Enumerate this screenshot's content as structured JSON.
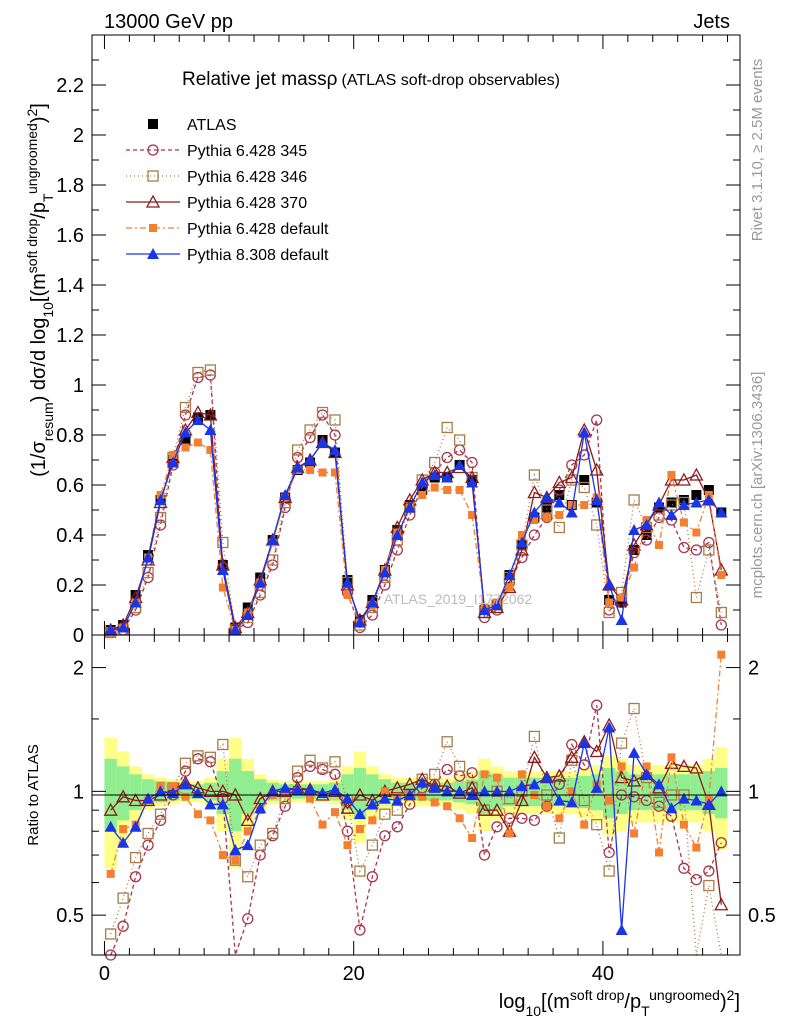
{
  "header": {
    "left": "13000 GeV pp",
    "right": "Jets"
  },
  "side_labels": {
    "rivet": "Rivet 3.1.10, ≥ 2.5M events",
    "mcplots": "mcplots.cern.ch [arXiv:1306.3436]"
  },
  "watermark": "ATLAS_2019_I1772062",
  "chart_data": [
    {
      "type": "line",
      "title": "Relative jet massρ",
      "subtitle": "(ATLAS soft-drop observables)",
      "ylabel": "(1/σresum) dσ/d log10[(m^soft drop/pT^ungroomed)²]",
      "xlim": [
        -1,
        51
      ],
      "ylim": [
        0,
        2.4
      ],
      "yticks": [
        0,
        0.2,
        0.4,
        0.6,
        0.8,
        1,
        1.2,
        1.4,
        1.6,
        1.8,
        2,
        2.2
      ],
      "x": [
        0.5,
        1.5,
        2.5,
        3.5,
        4.5,
        5.5,
        6.5,
        7.5,
        8.5,
        9.5,
        10.5,
        11.5,
        12.5,
        13.5,
        14.5,
        15.5,
        16.5,
        17.5,
        18.5,
        19.5,
        20.5,
        21.5,
        22.5,
        23.5,
        24.5,
        25.5,
        26.5,
        27.5,
        28.5,
        29.5,
        30.5,
        31.5,
        32.5,
        33.5,
        34.5,
        35.5,
        36.5,
        37.5,
        38.5,
        39.5,
        40.5,
        41.5,
        42.5,
        43.5,
        44.5,
        45.5,
        46.5,
        47.5,
        48.5,
        49.5
      ],
      "legend_position": "top-left",
      "series": [
        {
          "name": "ATLAS",
          "color": "#000000",
          "marker": "square-filled",
          "dash": "none",
          "values": [
            0.02,
            0.04,
            0.16,
            0.32,
            0.54,
            0.7,
            0.78,
            0.87,
            0.88,
            0.28,
            0.03,
            0.11,
            0.23,
            0.38,
            0.55,
            0.66,
            0.69,
            0.78,
            0.73,
            0.22,
            0.06,
            0.14,
            0.26,
            0.42,
            0.52,
            0.58,
            0.63,
            0.63,
            0.68,
            0.62,
            0.1,
            0.12,
            0.24,
            0.36,
            0.47,
            0.51,
            0.56,
            0.52,
            0.62,
            0.53,
            0.14,
            0.13,
            0.34,
            0.4,
            0.51,
            0.53,
            0.54,
            0.56,
            0.58,
            0.49
          ]
        },
        {
          "name": "Pythia 6.428 345",
          "color": "#a8344a",
          "marker": "circle-open",
          "dash": "4,3",
          "values": [
            0.01,
            0.02,
            0.1,
            0.23,
            0.44,
            0.68,
            0.88,
            1.03,
            1.04,
            0.27,
            0.02,
            0.05,
            0.16,
            0.28,
            0.51,
            0.71,
            0.79,
            0.88,
            0.8,
            0.17,
            0.03,
            0.08,
            0.2,
            0.34,
            0.48,
            0.59,
            0.65,
            0.71,
            0.74,
            0.69,
            0.07,
            0.1,
            0.21,
            0.31,
            0.4,
            0.47,
            0.58,
            0.68,
            0.72,
            0.86,
            0.1,
            0.13,
            0.33,
            0.38,
            0.47,
            0.46,
            0.35,
            0.34,
            0.37,
            0.04
          ]
        },
        {
          "name": "Pythia 6.428 346",
          "color": "#a67c48",
          "marker": "square-open",
          "dash": "1,3",
          "values": [
            0.01,
            0.02,
            0.11,
            0.25,
            0.47,
            0.71,
            0.91,
            1.05,
            1.06,
            0.37,
            0.02,
            0.07,
            0.17,
            0.3,
            0.53,
            0.74,
            0.82,
            0.89,
            0.86,
            0.21,
            0.04,
            0.11,
            0.23,
            0.38,
            0.51,
            0.62,
            0.69,
            0.83,
            0.78,
            0.63,
            0.09,
            0.12,
            0.23,
            0.36,
            0.64,
            0.5,
            0.43,
            0.62,
            0.59,
            0.44,
            0.09,
            0.17,
            0.54,
            0.43,
            0.48,
            0.52,
            0.53,
            0.15,
            0.34,
            0.09
          ]
        },
        {
          "name": "Pythia 6.428 370",
          "color": "#8b1a1a",
          "marker": "triangle-open",
          "dash": "none",
          "values": [
            0.02,
            0.04,
            0.15,
            0.3,
            0.53,
            0.71,
            0.82,
            0.89,
            0.88,
            0.28,
            0.03,
            0.09,
            0.22,
            0.38,
            0.55,
            0.67,
            0.7,
            0.77,
            0.73,
            0.2,
            0.06,
            0.13,
            0.26,
            0.43,
            0.54,
            0.62,
            0.65,
            0.65,
            0.67,
            0.63,
            0.09,
            0.11,
            0.19,
            0.34,
            0.57,
            0.55,
            0.61,
            0.63,
            0.82,
            0.66,
            0.2,
            0.14,
            0.36,
            0.44,
            0.52,
            0.62,
            0.62,
            0.64,
            0.54,
            0.26
          ]
        },
        {
          "name": "Pythia 6.428 default",
          "color": "#f57f30",
          "marker": "square-filled-small",
          "dash": "6,3,2,3",
          "values": [
            0.01,
            0.03,
            0.13,
            0.31,
            0.56,
            0.72,
            0.75,
            0.77,
            0.74,
            0.19,
            0.02,
            0.09,
            0.21,
            0.37,
            0.55,
            0.66,
            0.66,
            0.65,
            0.65,
            0.16,
            0.05,
            0.12,
            0.26,
            0.41,
            0.51,
            0.56,
            0.59,
            0.58,
            0.58,
            0.48,
            0.11,
            0.13,
            0.19,
            0.4,
            0.46,
            0.47,
            0.48,
            0.52,
            0.52,
            0.55,
            0.13,
            0.15,
            0.27,
            0.46,
            0.36,
            0.64,
            0.45,
            0.41,
            0.56,
            0.24
          ]
        },
        {
          "name": "Pythia 8.308 default",
          "color": "#1a35e6",
          "marker": "triangle-filled",
          "dash": "none",
          "values": [
            0.02,
            0.03,
            0.13,
            0.31,
            0.54,
            0.69,
            0.81,
            0.86,
            0.82,
            0.26,
            0.02,
            0.08,
            0.21,
            0.38,
            0.56,
            0.67,
            0.7,
            0.77,
            0.74,
            0.21,
            0.05,
            0.13,
            0.25,
            0.4,
            0.51,
            0.61,
            0.64,
            0.63,
            0.68,
            0.61,
            0.1,
            0.12,
            0.24,
            0.37,
            0.49,
            0.55,
            0.53,
            0.49,
            0.81,
            0.54,
            0.2,
            0.06,
            0.42,
            0.44,
            0.53,
            0.48,
            0.52,
            0.53,
            0.54,
            0.49
          ]
        }
      ]
    },
    {
      "type": "line",
      "title": "",
      "ylabel": "Ratio to ATLAS",
      "xlabel": "log10[(m^soft drop/pT^ungroomed)²]",
      "ylog": true,
      "ylim": [
        0.4,
        2.4
      ],
      "yticks": [
        0.5,
        1,
        2
      ],
      "xticks": [
        0,
        20,
        40
      ],
      "x": [
        0.5,
        1.5,
        2.5,
        3.5,
        4.5,
        5.5,
        6.5,
        7.5,
        8.5,
        9.5,
        10.5,
        11.5,
        12.5,
        13.5,
        14.5,
        15.5,
        16.5,
        17.5,
        18.5,
        19.5,
        20.5,
        21.5,
        22.5,
        23.5,
        24.5,
        25.5,
        26.5,
        27.5,
        28.5,
        29.5,
        30.5,
        31.5,
        32.5,
        33.5,
        34.5,
        35.5,
        36.5,
        37.5,
        38.5,
        39.5,
        40.5,
        41.5,
        42.5,
        43.5,
        44.5,
        45.5,
        46.5,
        47.5,
        48.5,
        49.5
      ],
      "band_inner_half_width": [
        0.2,
        0.15,
        0.1,
        0.07,
        0.06,
        0.05,
        0.04,
        0.04,
        0.05,
        0.12,
        0.2,
        0.12,
        0.07,
        0.05,
        0.04,
        0.04,
        0.04,
        0.04,
        0.05,
        0.1,
        0.14,
        0.1,
        0.07,
        0.05,
        0.05,
        0.05,
        0.05,
        0.05,
        0.06,
        0.07,
        0.12,
        0.1,
        0.08,
        0.08,
        0.08,
        0.08,
        0.08,
        0.08,
        0.09,
        0.1,
        0.14,
        0.12,
        0.1,
        0.1,
        0.1,
        0.1,
        0.1,
        0.1,
        0.12,
        0.14
      ],
      "band_outer_half_width": [
        0.35,
        0.25,
        0.15,
        0.1,
        0.08,
        0.07,
        0.06,
        0.06,
        0.08,
        0.2,
        0.35,
        0.2,
        0.1,
        0.07,
        0.06,
        0.06,
        0.06,
        0.06,
        0.07,
        0.15,
        0.25,
        0.15,
        0.1,
        0.08,
        0.08,
        0.08,
        0.08,
        0.08,
        0.1,
        0.12,
        0.2,
        0.15,
        0.12,
        0.12,
        0.12,
        0.12,
        0.12,
        0.12,
        0.14,
        0.16,
        0.22,
        0.2,
        0.16,
        0.16,
        0.16,
        0.16,
        0.16,
        0.16,
        0.2,
        0.28
      ],
      "band_colors": {
        "inner": "#90ee90",
        "outer": "#ffff88"
      },
      "series": [
        {
          "name": "Pythia 6.428 345",
          "values": [
            0.4,
            0.47,
            0.62,
            0.74,
            0.85,
            0.98,
            1.12,
            1.2,
            1.18,
            0.96,
            0.36,
            0.49,
            0.7,
            0.78,
            0.92,
            1.08,
            1.15,
            1.13,
            1.1,
            0.8,
            0.46,
            0.62,
            0.78,
            0.82,
            0.93,
            1.02,
            1.04,
            1.13,
            1.09,
            1.11,
            0.7,
            0.82,
            0.86,
            0.86,
            0.85,
            0.92,
            1.04,
            1.3,
            1.16,
            1.62,
            0.71,
            0.98,
            0.97,
            0.95,
            0.92,
            0.87,
            0.65,
            0.61,
            0.64,
            0.75
          ]
        },
        {
          "name": "Pythia 6.428 346",
          "values": [
            0.45,
            0.55,
            0.69,
            0.79,
            0.88,
            1.02,
            1.17,
            1.22,
            1.21,
            1.3,
            0.68,
            0.62,
            0.74,
            0.79,
            0.96,
            1.12,
            1.19,
            1.14,
            1.18,
            0.95,
            0.64,
            0.74,
            0.88,
            0.9,
            0.98,
            1.07,
            1.1,
            1.32,
            1.15,
            1.02,
            0.9,
            1.0,
            0.96,
            1.0,
            1.36,
            0.98,
            0.77,
            1.19,
            0.95,
            0.83,
            0.64,
            1.31,
            1.59,
            1.08,
            0.94,
            0.98,
            0.98,
            0.27,
            0.59,
            0.18
          ]
        },
        {
          "name": "Pythia 6.428 370",
          "values": [
            0.9,
            0.97,
            0.95,
            0.95,
            0.98,
            1.01,
            1.05,
            1.02,
            1.0,
            1.0,
            0.98,
            0.85,
            0.96,
            1.0,
            1.0,
            1.02,
            1.01,
            0.98,
            1.0,
            0.91,
            0.98,
            0.95,
            1.0,
            1.02,
            1.04,
            1.07,
            1.03,
            1.03,
            0.99,
            1.02,
            0.9,
            0.9,
            0.8,
            0.95,
            1.21,
            1.08,
            1.09,
            1.21,
            1.32,
            1.25,
            1.45,
            1.08,
            1.06,
            1.1,
            1.02,
            1.17,
            1.15,
            1.14,
            0.93,
            0.53
          ]
        },
        {
          "name": "Pythia 6.428 default",
          "values": [
            0.63,
            0.81,
            0.83,
            0.95,
            1.03,
            1.03,
            0.97,
            0.88,
            0.85,
            0.7,
            0.68,
            0.8,
            0.9,
            0.98,
            1.0,
            1.0,
            0.96,
            0.83,
            0.89,
            0.74,
            0.81,
            0.85,
            1.0,
            0.97,
            0.98,
            0.97,
            0.94,
            0.92,
            0.86,
            0.77,
            1.1,
            1.08,
            0.79,
            1.1,
            0.98,
            0.92,
            0.86,
            1.0,
            0.83,
            1.04,
            0.95,
            1.15,
            0.79,
            1.15,
            0.71,
            1.21,
            0.83,
            0.73,
            0.96,
            2.15
          ]
        },
        {
          "name": "Pythia 8.308 default",
          "values": [
            0.82,
            0.75,
            0.82,
            0.96,
            1.0,
            0.99,
            1.04,
            0.99,
            0.93,
            0.93,
            0.72,
            0.74,
            0.91,
            1.0,
            1.02,
            1.01,
            1.01,
            0.99,
            1.01,
            0.96,
            0.88,
            0.93,
            0.96,
            0.95,
            0.98,
            1.05,
            1.02,
            1.0,
            1.0,
            0.98,
            1.0,
            1.0,
            1.0,
            1.03,
            1.04,
            1.08,
            0.95,
            0.94,
            1.31,
            1.02,
            1.43,
            0.46,
            1.24,
            1.1,
            1.04,
            0.91,
            0.96,
            0.95,
            0.93,
            1.0
          ]
        }
      ]
    }
  ]
}
